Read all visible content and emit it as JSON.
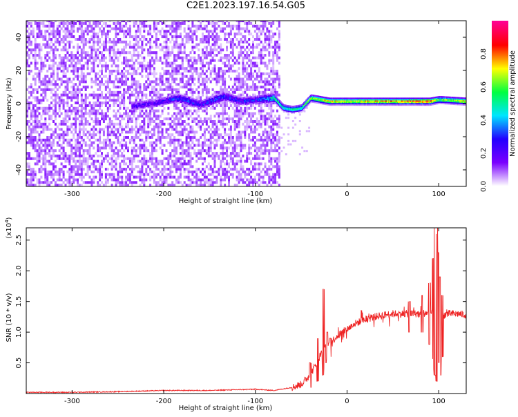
{
  "figure": {
    "title": "C2E1.2023.197.16.54.G05"
  },
  "chart_data": [
    {
      "type": "heatmap",
      "title": "C2E1.2023.197.16.54.G05",
      "xlabel": "Height of straight line (km)",
      "ylabel": "Frequency (Hz)",
      "xlim": [
        -350,
        130
      ],
      "ylim": [
        -50,
        50
      ],
      "xticks": [
        -300,
        -200,
        -100,
        0,
        100
      ],
      "xtick_labels": [
        "-300",
        "-200",
        "-100",
        "0",
        "100"
      ],
      "yticks": [
        -40,
        -20,
        0,
        20,
        40
      ],
      "ytick_labels": [
        "-40",
        "-20",
        "0",
        "20",
        "40"
      ],
      "colorbar": {
        "label": "Normalized spectral amplitude",
        "range": [
          0.0,
          1.0
        ],
        "ticks": [
          0.0,
          0.2,
          0.4,
          0.6,
          0.8
        ],
        "tick_labels": [
          "0.0",
          "0.2",
          "0.4",
          "0.6",
          "0.8"
        ],
        "colormap": [
          "#ffffff",
          "#7a00ff",
          "#2200ff",
          "#00e5ff",
          "#00ff40",
          "#ffff00",
          "#ff0000",
          "#ff0090"
        ]
      },
      "ridge": {
        "x": [
          -235,
          -210,
          -185,
          -160,
          -135,
          -115,
          -100,
          -80,
          -70,
          -60,
          -50,
          -40,
          -30,
          -20,
          0,
          30,
          60,
          90,
          100,
          130
        ],
        "frequency": [
          -2,
          0,
          3,
          -1,
          4,
          1,
          2,
          3,
          -3,
          -4,
          -3,
          3,
          2,
          1,
          1,
          1,
          1,
          1,
          2,
          1
        ],
        "amplitude": [
          0.25,
          0.22,
          0.35,
          0.3,
          0.35,
          0.3,
          0.3,
          0.55,
          0.5,
          0.5,
          0.55,
          0.65,
          0.7,
          0.72,
          0.72,
          0.75,
          0.8,
          0.85,
          0.6,
          0.75
        ]
      },
      "grid": false
    },
    {
      "type": "line",
      "title": "",
      "xlabel": "Height of straight line (km)",
      "ylabel": "SNR (10 * v/v)",
      "y_multiplier_label": "(x10",
      "y_multiplier_exponent": "4",
      "y_multiplier_close": ")",
      "xlim": [
        -350,
        130
      ],
      "ylim": [
        0,
        2.7
      ],
      "xticks": [
        -300,
        -200,
        -100,
        0,
        100
      ],
      "xtick_labels": [
        "-300",
        "-200",
        "-100",
        "0",
        "100"
      ],
      "yticks": [
        0.5,
        1.0,
        1.5,
        2.0,
        2.5
      ],
      "ytick_labels": [
        "0.5",
        "1.0",
        "1.5",
        "2.0",
        "2.5"
      ],
      "color": "#ee2222",
      "series": [
        {
          "x": [
            -350,
            -300,
            -250,
            -200,
            -150,
            -100,
            -80,
            -60,
            -50,
            -40,
            -35,
            -30,
            -25,
            -20,
            -10,
            0,
            10,
            20,
            30,
            40,
            50,
            60,
            70,
            80,
            90,
            95,
            100,
            105,
            110,
            120,
            130
          ],
          "values": [
            0.02,
            0.02,
            0.03,
            0.05,
            0.05,
            0.07,
            0.05,
            0.1,
            0.15,
            0.3,
            0.45,
            0.6,
            0.75,
            0.8,
            0.95,
            1.05,
            1.15,
            1.2,
            1.25,
            1.28,
            1.3,
            1.3,
            1.3,
            1.3,
            1.32,
            1.3,
            1.2,
            1.28,
            1.3,
            1.3,
            1.28
          ]
        }
      ],
      "spikes": {
        "x": [
          -40,
          -32,
          -26,
          -22,
          -18,
          68,
          82,
          90,
          94,
          96,
          98,
          100,
          102,
          104
        ],
        "high": [
          0.5,
          0.9,
          1.7,
          1.0,
          0.9,
          1.5,
          1.6,
          1.8,
          2.2,
          2.7,
          2.6,
          2.3,
          1.9,
          1.6
        ],
        "low": [
          0.1,
          0.2,
          0.3,
          0.5,
          0.6,
          1.0,
          1.0,
          0.8,
          0.4,
          0.3,
          0.2,
          0.5,
          0.3,
          0.6
        ]
      },
      "grid": false
    }
  ]
}
